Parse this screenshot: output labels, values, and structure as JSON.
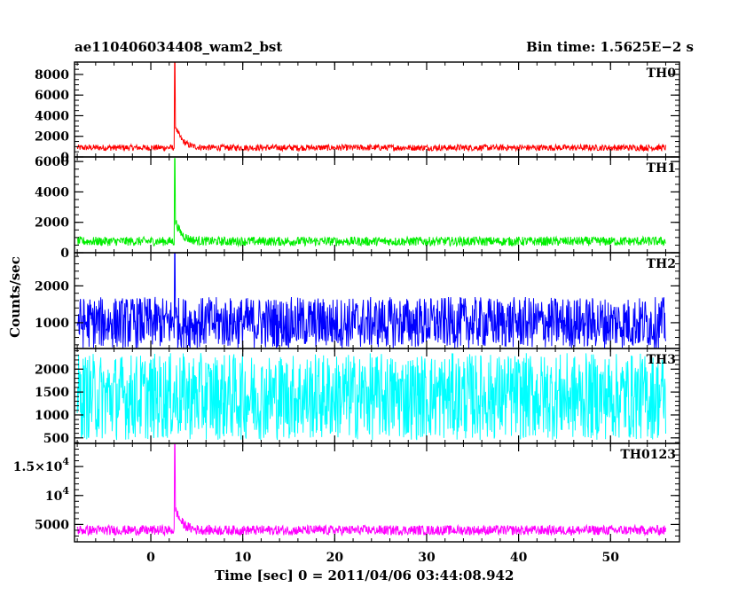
{
  "header": {
    "title": "ae110406034408_wam2_bst",
    "bin_time": "Bin time: 1.5625E−2 s"
  },
  "axes": {
    "ylabel": "Counts/sec",
    "xlabel": "Time [sec] 0 = 2011/04/06 03:44:08.942"
  },
  "chart_data": {
    "type": "line",
    "x_range": [
      -8,
      56
    ],
    "xlim": [
      -8.3,
      57.5
    ],
    "x_ticks": [
      0,
      10,
      20,
      30,
      40,
      50
    ],
    "x_minor_step": 2,
    "grid": false,
    "panels": [
      {
        "name": "TH0",
        "color": "#ff0000",
        "ylim": [
          0,
          9200
        ],
        "y_ticks": [
          {
            "v": 0,
            "label": "0"
          },
          {
            "v": 2000,
            "label": "2000"
          },
          {
            "v": 4000,
            "label": "4000"
          },
          {
            "v": 6000,
            "label": "6000"
          },
          {
            "v": 8000,
            "label": "8000"
          }
        ],
        "y_minor_step": 500,
        "base": 900,
        "noise": 600,
        "peak": 9200,
        "peak_x": 2.6,
        "tail_amp": 2400,
        "tail_tau": 0.7
      },
      {
        "name": "TH1",
        "color": "#00ee00",
        "ylim": [
          0,
          6300
        ],
        "y_ticks": [
          {
            "v": 0,
            "label": "0"
          },
          {
            "v": 2000,
            "label": "2000"
          },
          {
            "v": 4000,
            "label": "4000"
          },
          {
            "v": 6000,
            "label": "6000"
          }
        ],
        "y_minor_step": 500,
        "base": 750,
        "noise": 600,
        "peak": 6200,
        "peak_x": 2.6,
        "tail_amp": 1500,
        "tail_tau": 0.7
      },
      {
        "name": "TH2",
        "color": "#0000ff",
        "ylim": [
          300,
          2900
        ],
        "y_ticks": [
          {
            "v": 1000,
            "label": "1000"
          },
          {
            "v": 2000,
            "label": "2000"
          }
        ],
        "y_minor_step": 200,
        "base": 1000,
        "noise": 1400,
        "peak": 2900,
        "peak_x": 2.6,
        "tail_amp": 0,
        "tail_tau": 0.5
      },
      {
        "name": "TH3",
        "color": "#00ffff",
        "ylim": [
          380,
          2450
        ],
        "y_ticks": [
          {
            "v": 500,
            "label": "500"
          },
          {
            "v": 1000,
            "label": "1000"
          },
          {
            "v": 1500,
            "label": "1500"
          },
          {
            "v": 2000,
            "label": "2000"
          }
        ],
        "y_minor_step": 100,
        "base": 1400,
        "noise": 1900,
        "peak": 0,
        "peak_x": 2.6,
        "tail_amp": 0,
        "tail_tau": 0.5
      },
      {
        "name": "TH0123",
        "color": "#ff00ff",
        "ylim": [
          2000,
          19000
        ],
        "y_ticks": [
          {
            "v": 5000,
            "label": "5000"
          },
          {
            "v": 10000,
            "label": "10",
            "sup": "4"
          },
          {
            "v": 15000,
            "label": "1.5×10",
            "sup": "4"
          }
        ],
        "y_minor_step": 1000,
        "base": 4000,
        "noise": 1700,
        "peak": 18800,
        "peak_x": 2.6,
        "tail_amp": 4200,
        "tail_tau": 0.7
      }
    ]
  }
}
